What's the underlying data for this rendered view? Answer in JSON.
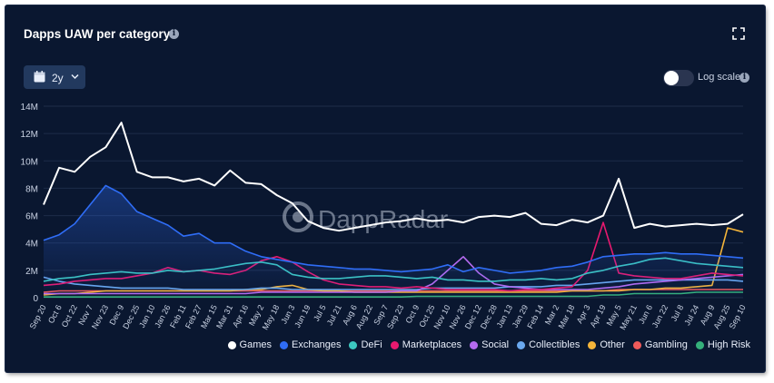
{
  "header": {
    "title": "Dapps UAW per category",
    "range_label": "2y",
    "log_scale_label": "Log scale",
    "log_scale_on": false
  },
  "watermark": "DappRadar",
  "chart_data": {
    "type": "line",
    "title": "Dapps UAW per category",
    "y_ticks": [
      "0",
      "2M",
      "4M",
      "6M",
      "8M",
      "10M",
      "12M",
      "14M"
    ],
    "ylim": [
      0,
      14000000
    ],
    "x": [
      "Sep 20",
      "Oct 6",
      "Oct 22",
      "Nov 7",
      "Nov 23",
      "Dec 9",
      "Dec 25",
      "Jan 10",
      "Jan 26",
      "Feb 11",
      "Feb 27",
      "Mar 15",
      "Mar 31",
      "Apr 16",
      "May 2",
      "May 18",
      "Jun 3",
      "Jun 19",
      "Jul 5",
      "Jul 21",
      "Aug 6",
      "Aug 22",
      "Sep 7",
      "Sep 23",
      "Oct 9",
      "Oct 25",
      "Nov 10",
      "Nov 26",
      "Dec 12",
      "Dec 28",
      "Jan 13",
      "Jan 29",
      "Feb 14",
      "Mar 2",
      "Mar 18",
      "Apr 3",
      "Apr 19",
      "May 5",
      "May 21",
      "Jun 6",
      "Jun 22",
      "Jul 8",
      "Jul 24",
      "Aug 9",
      "Aug 25",
      "Sep 10"
    ],
    "grid": true,
    "legend_position": "bottom-right",
    "series": [
      {
        "name": "Games",
        "color": "#ffffff",
        "values": [
          6.8,
          9.5,
          9.2,
          10.3,
          11.0,
          12.8,
          9.2,
          8.8,
          8.8,
          8.5,
          8.7,
          8.2,
          9.3,
          8.4,
          8.3,
          7.5,
          6.9,
          5.6,
          5.1,
          4.9,
          5.1,
          5.3,
          5.5,
          5.6,
          5.8,
          5.6,
          5.7,
          5.5,
          5.9,
          6.0,
          5.9,
          6.2,
          5.4,
          5.3,
          5.7,
          5.5,
          6.0,
          8.7,
          5.1,
          5.4,
          5.2,
          5.3,
          5.4,
          5.3,
          5.4,
          6.1
        ]
      },
      {
        "name": "Exchanges",
        "color": "#2f6df6",
        "values": [
          4.2,
          4.6,
          5.4,
          6.8,
          8.2,
          7.6,
          6.3,
          5.8,
          5.3,
          4.5,
          4.7,
          4.0,
          4.0,
          3.4,
          3.0,
          2.8,
          2.6,
          2.4,
          2.3,
          2.2,
          2.1,
          2.1,
          2.0,
          1.9,
          2.0,
          2.1,
          2.4,
          1.9,
          2.2,
          2.0,
          1.8,
          1.9,
          2.0,
          2.2,
          2.3,
          2.6,
          3.0,
          3.1,
          3.2,
          3.2,
          3.3,
          3.2,
          3.2,
          3.1,
          3.0,
          2.9
        ]
      },
      {
        "name": "DeFi",
        "color": "#3cc8c0",
        "values": [
          1.2,
          1.4,
          1.5,
          1.7,
          1.8,
          1.9,
          1.8,
          1.8,
          2.0,
          1.9,
          2.0,
          2.1,
          2.3,
          2.5,
          2.6,
          2.4,
          1.7,
          1.5,
          1.4,
          1.4,
          1.5,
          1.6,
          1.6,
          1.5,
          1.4,
          1.5,
          1.3,
          1.3,
          1.2,
          1.2,
          1.3,
          1.3,
          1.4,
          1.3,
          1.4,
          1.8,
          2.0,
          2.3,
          2.5,
          2.8,
          2.9,
          2.7,
          2.5,
          2.4,
          2.3,
          2.2
        ]
      },
      {
        "name": "Marketplaces",
        "color": "#e8196f",
        "values": [
          0.9,
          1.0,
          1.2,
          1.3,
          1.4,
          1.4,
          1.6,
          1.8,
          2.2,
          1.9,
          2.0,
          1.8,
          1.7,
          2.0,
          2.7,
          3.0,
          2.6,
          1.9,
          1.3,
          1.0,
          0.9,
          0.8,
          0.8,
          0.7,
          0.8,
          0.7,
          0.6,
          0.6,
          0.6,
          0.6,
          0.5,
          0.6,
          0.6,
          0.7,
          0.8,
          2.0,
          5.5,
          1.8,
          1.6,
          1.5,
          1.4,
          1.4,
          1.6,
          1.8,
          1.7,
          1.6
        ]
      },
      {
        "name": "Social",
        "color": "#b56bf0",
        "values": [
          0.3,
          0.3,
          0.3,
          0.3,
          0.3,
          0.3,
          0.3,
          0.3,
          0.3,
          0.3,
          0.3,
          0.3,
          0.3,
          0.3,
          0.4,
          0.4,
          0.4,
          0.4,
          0.4,
          0.4,
          0.4,
          0.4,
          0.4,
          0.5,
          0.5,
          1.0,
          2.0,
          3.0,
          1.8,
          1.0,
          0.8,
          0.7,
          0.6,
          0.6,
          0.6,
          0.6,
          0.7,
          0.8,
          1.0,
          1.1,
          1.2,
          1.3,
          1.4,
          1.5,
          1.6,
          1.7
        ]
      },
      {
        "name": "Collectibles",
        "color": "#6aa8ee",
        "values": [
          1.5,
          1.2,
          1.0,
          0.9,
          0.8,
          0.7,
          0.7,
          0.7,
          0.7,
          0.6,
          0.6,
          0.6,
          0.6,
          0.6,
          0.7,
          0.7,
          0.6,
          0.6,
          0.6,
          0.6,
          0.6,
          0.6,
          0.6,
          0.6,
          0.6,
          0.7,
          0.7,
          0.7,
          0.7,
          0.7,
          0.8,
          0.8,
          0.8,
          0.9,
          0.9,
          1.0,
          1.1,
          1.2,
          1.3,
          1.3,
          1.3,
          1.3,
          1.3,
          1.3,
          1.3,
          1.2
        ]
      },
      {
        "name": "Other",
        "color": "#f5b53a",
        "values": [
          0.2,
          0.3,
          0.3,
          0.4,
          0.5,
          0.5,
          0.5,
          0.5,
          0.5,
          0.5,
          0.5,
          0.5,
          0.5,
          0.6,
          0.6,
          0.8,
          0.9,
          0.6,
          0.5,
          0.5,
          0.4,
          0.4,
          0.4,
          0.4,
          0.4,
          0.4,
          0.4,
          0.4,
          0.4,
          0.4,
          0.4,
          0.4,
          0.4,
          0.4,
          0.5,
          0.5,
          0.5,
          0.5,
          0.6,
          0.6,
          0.7,
          0.7,
          0.8,
          0.9,
          5.1,
          4.8
        ]
      },
      {
        "name": "Gambling",
        "color": "#ef5a5a",
        "values": [
          0.4,
          0.5,
          0.5,
          0.5,
          0.5,
          0.5,
          0.5,
          0.5,
          0.5,
          0.5,
          0.5,
          0.5,
          0.5,
          0.5,
          0.5,
          0.5,
          0.5,
          0.5,
          0.5,
          0.5,
          0.5,
          0.5,
          0.5,
          0.5,
          0.5,
          0.5,
          0.5,
          0.5,
          0.5,
          0.5,
          0.5,
          0.5,
          0.5,
          0.5,
          0.5,
          0.5,
          0.5,
          0.6,
          0.6,
          0.6,
          0.6,
          0.6,
          0.6,
          0.6,
          0.6,
          0.6
        ]
      },
      {
        "name": "High Risk",
        "color": "#35b07a",
        "values": [
          0.05,
          0.05,
          0.05,
          0.05,
          0.05,
          0.05,
          0.05,
          0.05,
          0.05,
          0.05,
          0.05,
          0.05,
          0.05,
          0.05,
          0.05,
          0.05,
          0.05,
          0.05,
          0.05,
          0.05,
          0.05,
          0.05,
          0.05,
          0.05,
          0.1,
          0.1,
          0.1,
          0.1,
          0.1,
          0.1,
          0.1,
          0.1,
          0.1,
          0.1,
          0.1,
          0.1,
          0.2,
          0.2,
          0.3,
          0.3,
          0.3,
          0.3,
          0.4,
          0.4,
          0.4,
          0.4
        ]
      }
    ]
  }
}
